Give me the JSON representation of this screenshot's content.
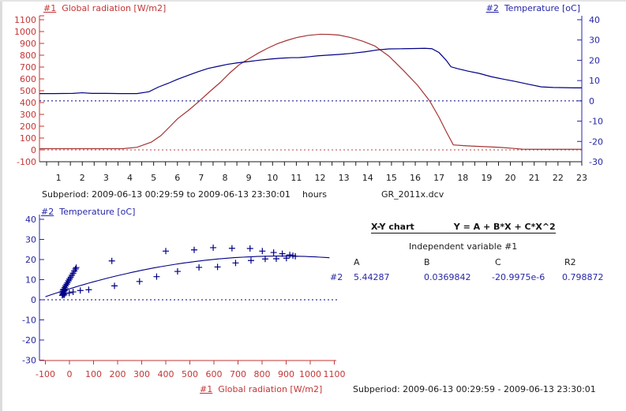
{
  "chart_data": [
    {
      "type": "line",
      "subperiod": "Subperiod: 2009-06-13 00:29:59 to 2009-06-13 23:30:01",
      "filename": "GR_2011x.dcv",
      "x_axis": {
        "label": "hours",
        "range": [
          0.2,
          23.0
        ],
        "minor_step": 0.5,
        "ticks": [
          1,
          2,
          3,
          4,
          5,
          6,
          7,
          8,
          9,
          10,
          11,
          12,
          13,
          14,
          15,
          16,
          17,
          18,
          19,
          20,
          21,
          22,
          23
        ]
      },
      "left_axis": {
        "prefix": "#1",
        "label": "Global radiation [W/m2]",
        "range": [
          -100,
          1100
        ],
        "color": "#C43636",
        "zero_line": 0,
        "ticks": [
          1100,
          1000,
          900,
          800,
          700,
          600,
          500,
          400,
          300,
          200,
          100,
          0,
          -100
        ]
      },
      "right_axis": {
        "prefix": "#2",
        "label": "Temperature [oC]",
        "range": [
          -30,
          40
        ],
        "color": "#2626A8",
        "zero_line": 0,
        "ticks": [
          40,
          30,
          20,
          10,
          0,
          -10,
          -20,
          -30
        ]
      },
      "series": [
        {
          "name": "Global radiation",
          "unit": "W/m2",
          "axis": "left",
          "color": "#A53434",
          "points": [
            [
              0.2,
              10
            ],
            [
              1,
              10
            ],
            [
              2,
              10
            ],
            [
              3,
              10
            ],
            [
              3.7,
              10
            ],
            [
              4.3,
              22
            ],
            [
              4.9,
              65
            ],
            [
              5.3,
              120
            ],
            [
              5.7,
              200
            ],
            [
              6.0,
              262
            ],
            [
              6.5,
              340
            ],
            [
              6.9,
              409
            ],
            [
              7.4,
              500
            ],
            [
              7.8,
              570
            ],
            [
              8.2,
              650
            ],
            [
              8.6,
              720
            ],
            [
              9.0,
              770
            ],
            [
              9.4,
              818
            ],
            [
              9.8,
              860
            ],
            [
              10.2,
              897
            ],
            [
              10.6,
              925
            ],
            [
              11.0,
              949
            ],
            [
              11.5,
              968
            ],
            [
              12.0,
              977
            ],
            [
              12.4,
              976
            ],
            [
              12.8,
              970
            ],
            [
              13.3,
              949
            ],
            [
              13.8,
              918
            ],
            [
              14.3,
              878
            ],
            [
              14.9,
              791
            ],
            [
              15.5,
              672
            ],
            [
              16.1,
              545
            ],
            [
              16.6,
              415
            ],
            [
              17.0,
              275
            ],
            [
              17.3,
              155
            ],
            [
              17.6,
              42
            ],
            [
              18.1,
              35
            ],
            [
              18.6,
              30
            ],
            [
              19.1,
              26
            ],
            [
              19.6,
              21
            ],
            [
              20.1,
              13
            ],
            [
              20.5,
              6
            ],
            [
              21.0,
              5
            ],
            [
              22.0,
              5
            ],
            [
              23.0,
              5
            ]
          ]
        },
        {
          "name": "Temperature",
          "unit": "oC",
          "axis": "right",
          "color": "#000085",
          "points": [
            [
              0.2,
              3.6
            ],
            [
              0.8,
              3.6
            ],
            [
              1.6,
              3.7
            ],
            [
              2.0,
              4.0
            ],
            [
              2.4,
              3.7
            ],
            [
              3.0,
              3.7
            ],
            [
              3.6,
              3.6
            ],
            [
              4.3,
              3.6
            ],
            [
              4.8,
              4.5
            ],
            [
              5.2,
              6.8
            ],
            [
              5.6,
              8.6
            ],
            [
              6.0,
              10.6
            ],
            [
              6.5,
              12.8
            ],
            [
              6.9,
              14.5
            ],
            [
              7.3,
              16.0
            ],
            [
              7.7,
              17.0
            ],
            [
              8.1,
              18.0
            ],
            [
              8.5,
              18.7
            ],
            [
              9.0,
              19.4
            ],
            [
              9.4,
              20.0
            ],
            [
              9.9,
              20.6
            ],
            [
              10.3,
              21.0
            ],
            [
              10.8,
              21.3
            ],
            [
              11.1,
              21.3
            ],
            [
              11.5,
              21.7
            ],
            [
              11.9,
              22.2
            ],
            [
              12.4,
              22.6
            ],
            [
              12.8,
              22.9
            ],
            [
              13.3,
              23.4
            ],
            [
              13.9,
              24.2
            ],
            [
              14.4,
              25.1
            ],
            [
              14.9,
              25.6
            ],
            [
              15.5,
              25.7
            ],
            [
              16.0,
              25.8
            ],
            [
              16.4,
              25.9
            ],
            [
              16.7,
              25.7
            ],
            [
              17.0,
              23.8
            ],
            [
              17.3,
              20.0
            ],
            [
              17.5,
              16.8
            ],
            [
              17.8,
              15.8
            ],
            [
              18.2,
              14.7
            ],
            [
              18.7,
              13.5
            ],
            [
              19.2,
              11.9
            ],
            [
              19.7,
              10.7
            ],
            [
              20.2,
              9.6
            ],
            [
              20.8,
              8.1
            ],
            [
              21.3,
              6.9
            ],
            [
              21.8,
              6.6
            ],
            [
              22.3,
              6.5
            ],
            [
              22.7,
              6.4
            ],
            [
              23.0,
              6.4
            ]
          ]
        }
      ]
    },
    {
      "type": "scatter",
      "subperiod": "Subperiod: 2009-06-13 00:29:59 - 2009-06-13 23:30:01",
      "x_axis": {
        "prefix": "#1",
        "label": "Global radiation [W/m2]",
        "range": [
          -100,
          1100
        ],
        "color": "#C43636",
        "ticks": [
          -100,
          0,
          100,
          200,
          300,
          400,
          500,
          600,
          700,
          800,
          900,
          1000,
          1100
        ]
      },
      "y_axis": {
        "prefix": "#2",
        "label": "Temperature [oC]",
        "range": [
          -30,
          40
        ],
        "color": "#2626A8",
        "zero_line": 0,
        "ticks": [
          40,
          30,
          20,
          10,
          0,
          -10,
          -20,
          -30
        ]
      },
      "marker": "+",
      "marker_color": "#000085",
      "points": [
        [
          -30,
          2.2
        ],
        [
          -26,
          2.6
        ],
        [
          -22,
          2.4
        ],
        [
          -28,
          3.0
        ],
        [
          -24,
          3.4
        ],
        [
          -18,
          3.2
        ],
        [
          -30,
          3.8
        ],
        [
          -25,
          4.1
        ],
        [
          -20,
          4.5
        ],
        [
          -27,
          4.8
        ],
        [
          -22,
          5.1
        ],
        [
          -16,
          5.4
        ],
        [
          -24,
          5.3
        ],
        [
          -20,
          6.1
        ],
        [
          -16,
          6.9
        ],
        [
          -12,
          7.7
        ],
        [
          -8,
          8.5
        ],
        [
          -4,
          9.4
        ],
        [
          0,
          10.3
        ],
        [
          5,
          11.2
        ],
        [
          10,
          12.2
        ],
        [
          15,
          13.2
        ],
        [
          20,
          14.3
        ],
        [
          25,
          15.3
        ],
        [
          28,
          16.0
        ],
        [
          -1,
          3.4
        ],
        [
          15,
          3.9
        ],
        [
          45,
          4.6
        ],
        [
          80,
          5.0
        ],
        [
          176,
          19.3
        ],
        [
          187,
          6.9
        ],
        [
          291,
          9.1
        ],
        [
          362,
          11.5
        ],
        [
          400,
          24.2
        ],
        [
          449,
          14.1
        ],
        [
          518,
          24.8
        ],
        [
          538,
          16.1
        ],
        [
          597,
          25.9
        ],
        [
          615,
          16.3
        ],
        [
          675,
          25.6
        ],
        [
          690,
          18.3
        ],
        [
          750,
          25.5
        ],
        [
          754,
          19.5
        ],
        [
          801,
          24.2
        ],
        [
          813,
          20.3
        ],
        [
          848,
          23.5
        ],
        [
          859,
          20.4
        ],
        [
          884,
          22.9
        ],
        [
          901,
          20.7
        ],
        [
          915,
          22.3
        ],
        [
          928,
          21.9
        ],
        [
          938,
          21.6
        ]
      ],
      "fit": {
        "title": "X-Y chart",
        "formula": "Y = A + B*X + C*X^2",
        "independent": "Independent variable #1",
        "headers": [
          "A",
          "B",
          "C",
          "R2"
        ],
        "row_label": "#2",
        "A": 5.44287,
        "B": 0.0369842,
        "C": -2.09975e-05,
        "A_str": "5.44287",
        "B_str": "0.0369842",
        "C_str": "-20.9975e-6",
        "R2_str": "0.798872",
        "curve_color": "#000085",
        "curve_range": [
          -100,
          1080
        ]
      }
    }
  ]
}
